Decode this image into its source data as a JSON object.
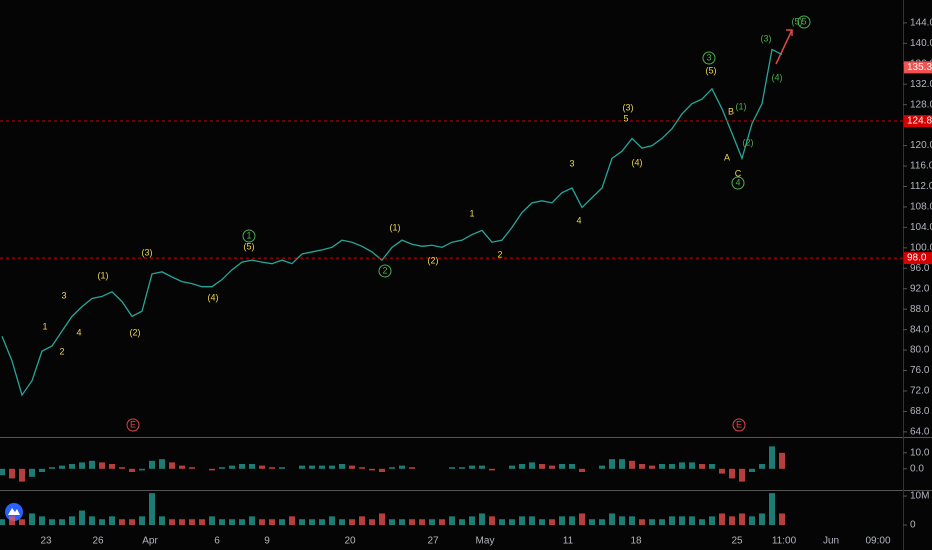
{
  "chart_data": [
    {
      "type": "line",
      "panel": "price",
      "color": "#26a69a",
      "values": [
        82.7,
        77.9,
        71.2,
        74.0,
        79.8,
        80.8,
        83.7,
        86.6,
        88.5,
        90.1,
        90.5,
        91.4,
        89.5,
        86.6,
        87.6,
        94.9,
        95.3,
        94.3,
        93.4,
        93.0,
        92.4,
        92.4,
        93.8,
        95.7,
        97.2,
        97.6,
        97.2,
        96.9,
        97.6,
        96.9,
        98.8,
        99.2,
        99.6,
        100.1,
        101.5,
        101.1,
        100.3,
        99.2,
        97.6,
        100.1,
        101.5,
        100.7,
        100.3,
        100.5,
        100.1,
        101.1,
        101.5,
        102.6,
        103.4,
        101.1,
        101.5,
        104.0,
        106.9,
        108.8,
        109.2,
        108.8,
        110.8,
        111.7,
        107.9,
        109.8,
        111.7,
        117.5,
        118.9,
        121.4,
        119.5,
        120.0,
        121.4,
        123.3,
        126.2,
        128.2,
        129.1,
        131.1,
        127.2,
        122.4,
        117.5,
        124.3,
        128.2,
        138.8,
        137.8
      ],
      "ylim": [
        63,
        147.5
      ],
      "yticks": [
        {
          "value": 64,
          "label": "64.0"
        },
        {
          "value": 68,
          "label": "68.0"
        },
        {
          "value": 72,
          "label": "72.0"
        },
        {
          "value": 76,
          "label": "76.0"
        },
        {
          "value": 80,
          "label": "80.0"
        },
        {
          "value": 84,
          "label": "84.0"
        },
        {
          "value": 88,
          "label": "88.0"
        },
        {
          "value": 92,
          "label": "92.0"
        },
        {
          "value": 96,
          "label": "96.0"
        },
        {
          "value": 100,
          "label": "100.0"
        },
        {
          "value": 104,
          "label": "104.0"
        },
        {
          "value": 108,
          "label": "108.0"
        },
        {
          "value": 112,
          "label": "112.0"
        },
        {
          "value": 116,
          "label": "116.0"
        },
        {
          "value": 120,
          "label": "120.0"
        },
        {
          "value": 128,
          "label": "128.0"
        },
        {
          "value": 132,
          "label": "132.0"
        },
        {
          "value": 136,
          "label": "136.0"
        },
        {
          "value": 140,
          "label": "140.0"
        },
        {
          "value": 144,
          "label": "144.0"
        }
      ],
      "price_markers": [
        {
          "value": 135.3,
          "label": "135.3",
          "color": "#f05350"
        },
        {
          "value": 124.8,
          "label": "124.8",
          "color": "#d50000"
        },
        {
          "value": 98.0,
          "label": "98.0",
          "color": "#d50000"
        }
      ],
      "annotations": [
        {
          "text": "1",
          "color": "#f0d84a"
        },
        {
          "text": "2",
          "color": "#f0d84a"
        },
        {
          "text": "3",
          "color": "#f0d84a"
        },
        {
          "text": "4",
          "color": "#f0d84a"
        },
        {
          "text": "(1)",
          "color": "#f0d84a"
        },
        {
          "text": "(2)",
          "color": "#f0d84a"
        },
        {
          "text": "(3)",
          "color": "#f0d84a"
        },
        {
          "text": "(4)",
          "color": "#f0d84a"
        },
        {
          "text": "1",
          "color": "#4caf50",
          "circled": true
        },
        {
          "text": "(5)",
          "color": "#f0d84a"
        },
        {
          "text": "(1)",
          "color": "#f0d84a"
        },
        {
          "text": "2",
          "color": "#4caf50",
          "circled": true
        },
        {
          "text": "(2)",
          "color": "#f0d84a"
        },
        {
          "text": "1",
          "color": "#f0d84a"
        },
        {
          "text": "2",
          "color": "#f0d84a"
        },
        {
          "text": "3",
          "color": "#f0d84a"
        },
        {
          "text": "4",
          "color": "#f0d84a"
        },
        {
          "text": "(3)",
          "color": "#f0d84a"
        },
        {
          "text": "5",
          "color": "#f0d84a"
        },
        {
          "text": "(4)",
          "color": "#f0d84a"
        },
        {
          "text": "3",
          "color": "#4caf50",
          "circled": true
        },
        {
          "text": "(5)",
          "color": "#f0d84a"
        },
        {
          "text": "(1)",
          "color": "#4caf50"
        },
        {
          "text": "B",
          "color": "#f0d84a"
        },
        {
          "text": "A",
          "color": "#f0d84a"
        },
        {
          "text": "(2)",
          "color": "#4caf50"
        },
        {
          "text": "C",
          "color": "#f0d84a"
        },
        {
          "text": "4",
          "color": "#4caf50",
          "circled": true
        },
        {
          "text": "(3)",
          "color": "#4caf50"
        },
        {
          "text": "(4)",
          "color": "#4caf50"
        },
        {
          "text": "(5)",
          "color": "#4caf50"
        },
        {
          "text": "5",
          "color": "#4caf50",
          "circled": true
        },
        {
          "text": "E",
          "color": "#e0464b",
          "circled": true
        },
        {
          "text": "E",
          "color": "#e0464b",
          "circled": true
        }
      ],
      "x_labels": [
        "23",
        "26",
        "Apr",
        "6",
        "9",
        "20",
        "27",
        "May",
        "11",
        "18",
        "25",
        "11:00",
        "Jun",
        "09:00"
      ]
    },
    {
      "type": "bar",
      "panel": "oscillator",
      "up_color": "#26a69a",
      "down_color": "#ef5350",
      "values": [
        -4,
        -6,
        -8,
        -5,
        -2,
        1,
        2,
        3,
        4,
        5,
        4,
        3,
        1,
        -2,
        -1,
        5,
        6,
        4,
        2,
        1,
        0,
        -1,
        1,
        2,
        3,
        3,
        2,
        1,
        1,
        0,
        2,
        2,
        2,
        2,
        3,
        2,
        1,
        -1,
        -2,
        1,
        2,
        1,
        0,
        0,
        0,
        1,
        1,
        2,
        2,
        -1,
        0,
        2,
        3,
        4,
        3,
        2,
        3,
        3,
        -2,
        0,
        2,
        6,
        6,
        5,
        3,
        2,
        3,
        3,
        4,
        4,
        3,
        3,
        -3,
        -6,
        -8,
        -2,
        3,
        14,
        10
      ],
      "ylim": [
        -12,
        18
      ],
      "yticks": [
        {
          "value": 0,
          "label": "0.0"
        },
        {
          "value": 10,
          "label": "10.0"
        }
      ]
    },
    {
      "type": "bar",
      "panel": "volume",
      "up_color": "#26a69a",
      "down_color": "#ef5350",
      "values": [
        2,
        3,
        2,
        4,
        3,
        2,
        2,
        3,
        5,
        3,
        2,
        3,
        2,
        2,
        3,
        11,
        3,
        2,
        2,
        2,
        2,
        3,
        2,
        2,
        2,
        3,
        2,
        2,
        2,
        3,
        2,
        2,
        2,
        3,
        2,
        2,
        3,
        2,
        4,
        2,
        2,
        2,
        2,
        2,
        2,
        3,
        2,
        3,
        4,
        3,
        2,
        2,
        3,
        3,
        2,
        2,
        3,
        3,
        4,
        2,
        2,
        4,
        3,
        3,
        2,
        2,
        2,
        3,
        3,
        3,
        2,
        3,
        4,
        3,
        4,
        3,
        4,
        11,
        4
      ],
      "ylim": [
        -2.4,
        11.4
      ],
      "yticks": [
        0,
        {
          "value": 10,
          "label": "10M"
        }
      ]
    }
  ]
}
